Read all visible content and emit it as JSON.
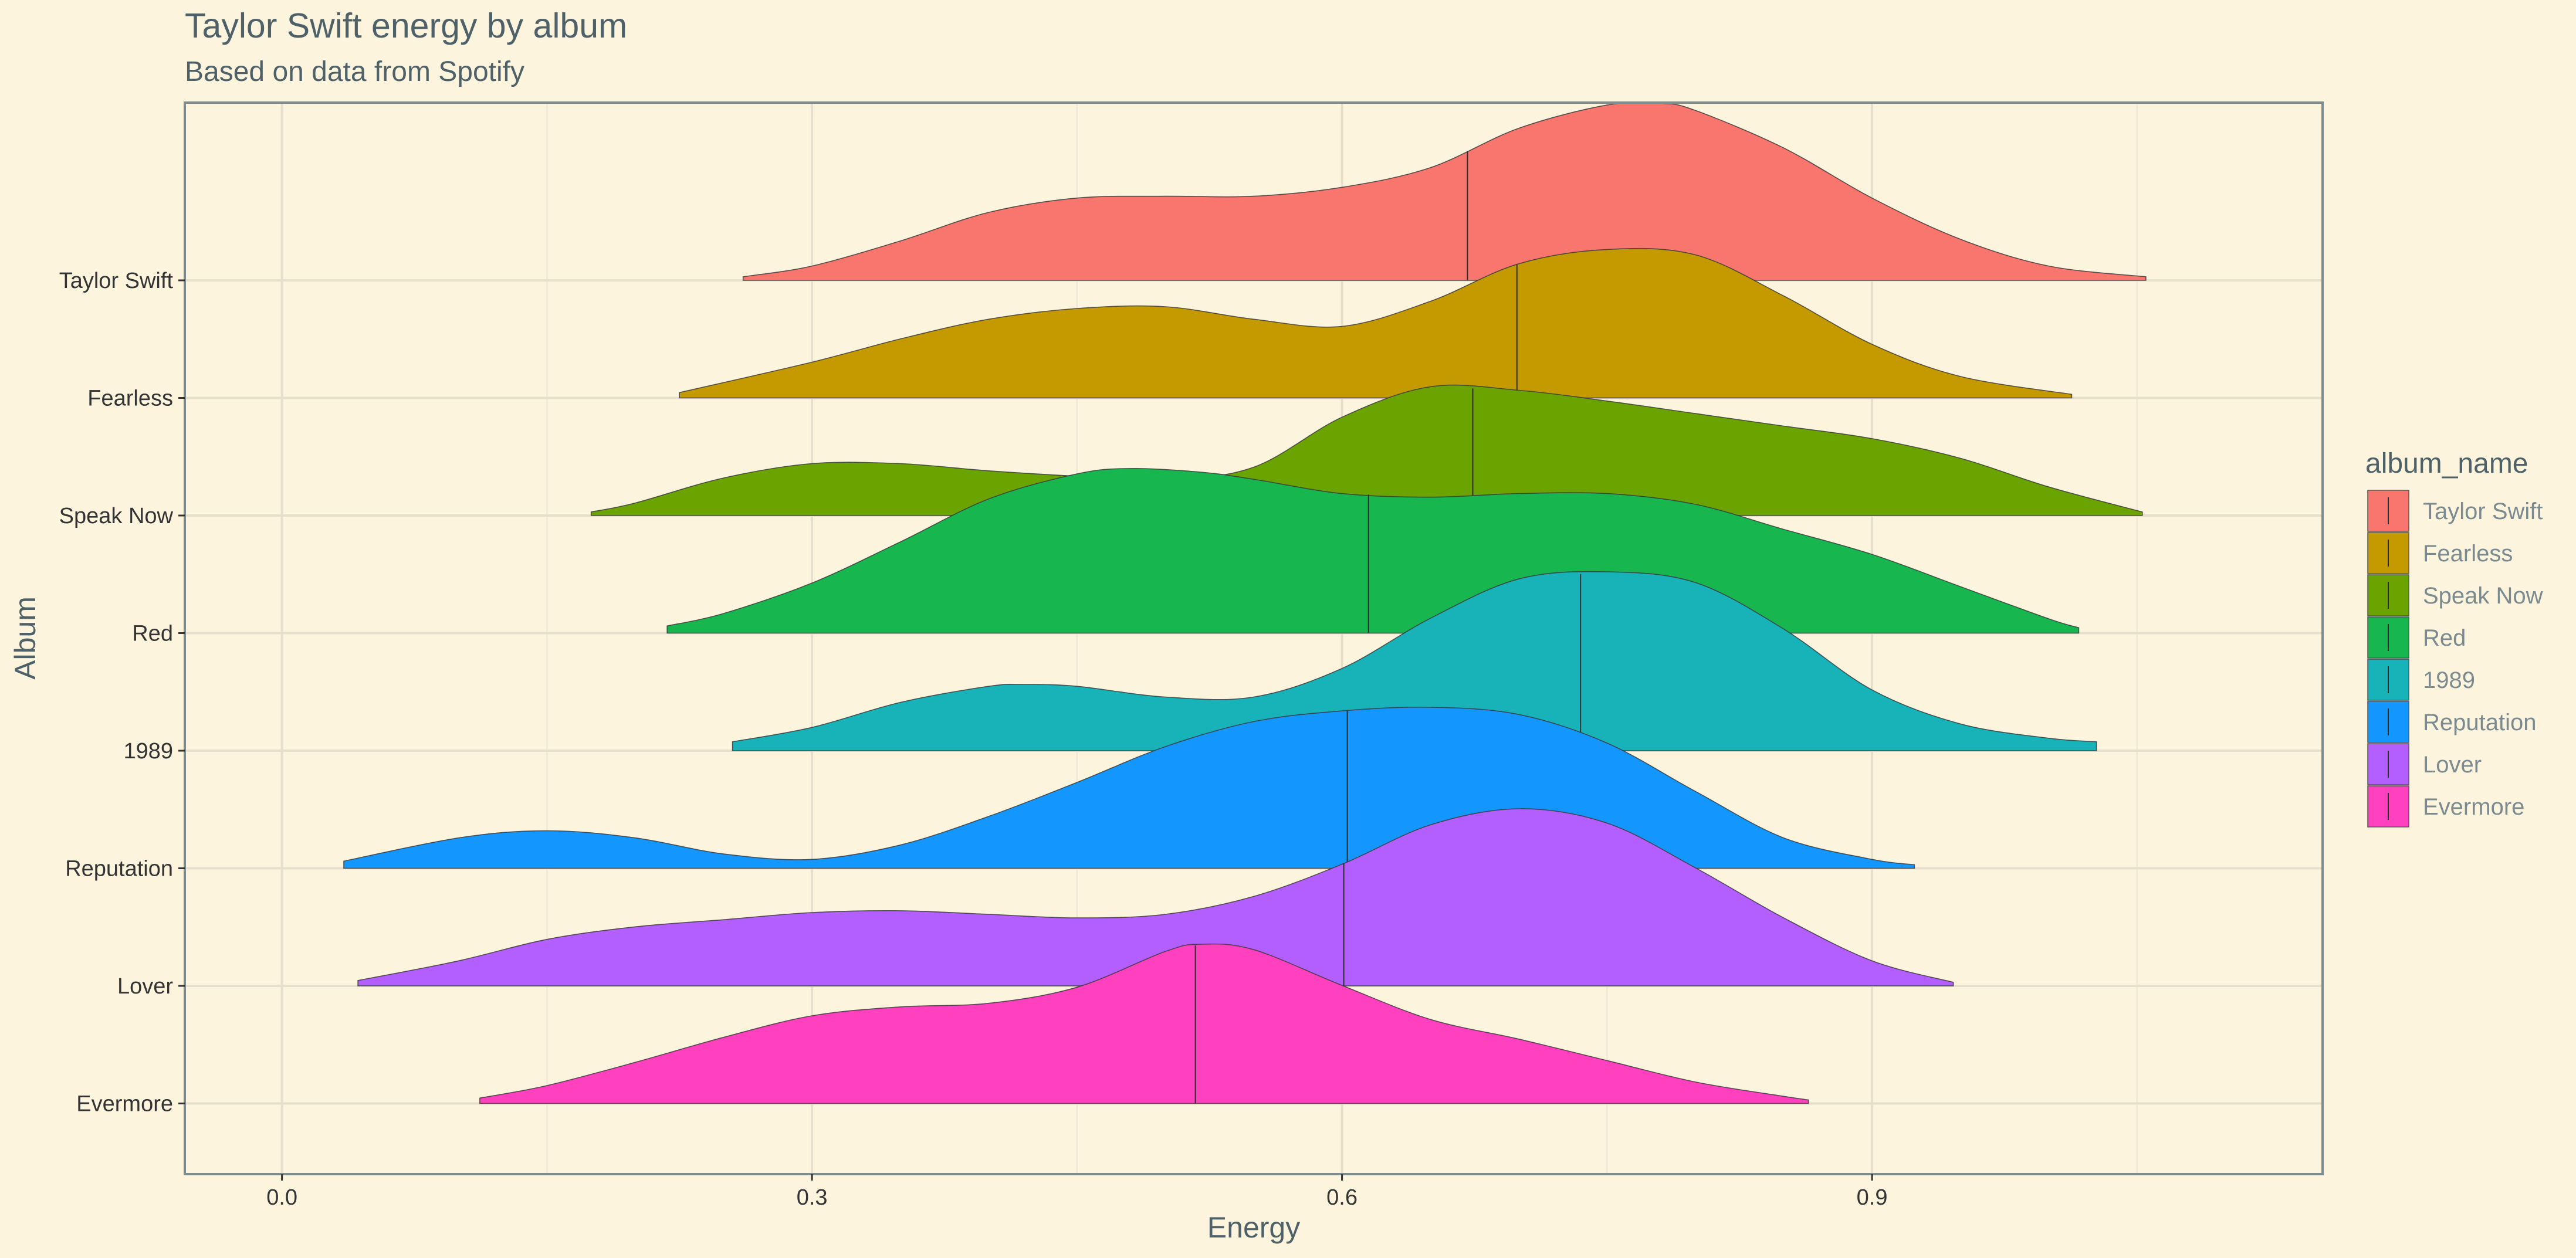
{
  "chart_data": {
    "type": "ridgeline",
    "title": "Taylor Swift energy by album",
    "subtitle": "Based on data from Spotify",
    "xlabel": "Energy",
    "ylabel": "Album",
    "xlim": [
      -0.055,
      1.155
    ],
    "x_ticks": [
      0.0,
      0.3,
      0.6,
      0.9
    ],
    "x_tick_labels": [
      "0.0",
      "0.3",
      "0.6",
      "0.9"
    ],
    "grid": true,
    "legend_title": "album_name",
    "legend_position": "right",
    "series": [
      {
        "name": "Taylor Swift",
        "color": "#F8766D",
        "median": 0.671,
        "x": [
          0.261,
          0.3,
          0.35,
          0.4,
          0.45,
          0.5,
          0.55,
          0.6,
          0.65,
          0.7,
          0.75,
          0.78,
          0.8,
          0.85,
          0.9,
          0.95,
          1.0,
          1.055
        ],
        "density": [
          0.02,
          0.08,
          0.22,
          0.38,
          0.46,
          0.47,
          0.47,
          0.52,
          0.63,
          0.85,
          0.98,
          0.99,
          0.95,
          0.74,
          0.46,
          0.23,
          0.08,
          0.02
        ]
      },
      {
        "name": "Fearless",
        "color": "#C49A00",
        "median": 0.699,
        "x": [
          0.225,
          0.3,
          0.35,
          0.4,
          0.45,
          0.5,
          0.55,
          0.6,
          0.65,
          0.7,
          0.75,
          0.8,
          0.85,
          0.9,
          0.95,
          1.013
        ],
        "density": [
          0.03,
          0.2,
          0.33,
          0.44,
          0.5,
          0.51,
          0.44,
          0.4,
          0.54,
          0.75,
          0.83,
          0.8,
          0.57,
          0.3,
          0.12,
          0.02
        ]
      },
      {
        "name": "Speak Now",
        "color": "#53B400",
        "median": 0.674,
        "x": [
          0.175,
          0.2,
          0.25,
          0.3,
          0.35,
          0.4,
          0.45,
          0.5,
          0.55,
          0.6,
          0.65,
          0.7,
          0.75,
          0.8,
          0.85,
          0.9,
          0.95,
          1.0,
          1.053
        ],
        "density": [
          0.02,
          0.07,
          0.21,
          0.29,
          0.29,
          0.25,
          0.22,
          0.2,
          0.27,
          0.55,
          0.72,
          0.7,
          0.64,
          0.57,
          0.5,
          0.43,
          0.32,
          0.16,
          0.02
        ]
      },
      {
        "name": "Red",
        "color": "#00C094",
        "median": 0.615,
        "x": [
          0.218,
          0.25,
          0.3,
          0.35,
          0.4,
          0.45,
          0.48,
          0.52,
          0.55,
          0.6,
          0.65,
          0.7,
          0.75,
          0.8,
          0.85,
          0.9,
          0.95,
          1.0,
          1.017
        ],
        "density": [
          0.04,
          0.11,
          0.28,
          0.51,
          0.75,
          0.89,
          0.92,
          0.9,
          0.86,
          0.78,
          0.76,
          0.78,
          0.78,
          0.72,
          0.58,
          0.44,
          0.26,
          0.08,
          0.03
        ]
      },
      {
        "name": "1989",
        "color": "#00B6EB",
        "median": 0.735,
        "x": [
          0.255,
          0.3,
          0.35,
          0.4,
          0.42,
          0.45,
          0.5,
          0.55,
          0.6,
          0.65,
          0.7,
          0.75,
          0.8,
          0.85,
          0.9,
          0.95,
          1.0,
          1.027
        ],
        "density": [
          0.05,
          0.13,
          0.27,
          0.36,
          0.37,
          0.36,
          0.3,
          0.3,
          0.46,
          0.74,
          0.96,
          1.0,
          0.94,
          0.68,
          0.34,
          0.15,
          0.07,
          0.05
        ]
      },
      {
        "name": "Reputation",
        "color": "#A58AFF",
        "median": 0.603,
        "x": [
          0.035,
          0.1,
          0.15,
          0.2,
          0.25,
          0.3,
          0.35,
          0.4,
          0.45,
          0.5,
          0.55,
          0.6,
          0.65,
          0.7,
          0.75,
          0.8,
          0.85,
          0.9,
          0.924
        ],
        "density": [
          0.04,
          0.17,
          0.21,
          0.17,
          0.08,
          0.05,
          0.13,
          0.29,
          0.48,
          0.68,
          0.82,
          0.88,
          0.9,
          0.86,
          0.7,
          0.43,
          0.17,
          0.05,
          0.02
        ]
      },
      {
        "name": "Lover",
        "color": "#FB61D7",
        "median": 0.601,
        "x": [
          0.043,
          0.1,
          0.15,
          0.2,
          0.25,
          0.3,
          0.35,
          0.4,
          0.45,
          0.5,
          0.55,
          0.6,
          0.65,
          0.7,
          0.75,
          0.8,
          0.85,
          0.9,
          0.946
        ],
        "density": [
          0.03,
          0.14,
          0.26,
          0.33,
          0.37,
          0.41,
          0.42,
          0.4,
          0.38,
          0.4,
          0.5,
          0.68,
          0.9,
          0.99,
          0.91,
          0.66,
          0.38,
          0.14,
          0.02
        ]
      },
      {
        "name": "Evermore",
        "color": "#FF3FC0",
        "median": 0.517,
        "x": [
          0.112,
          0.15,
          0.2,
          0.25,
          0.3,
          0.35,
          0.4,
          0.45,
          0.5,
          0.52,
          0.55,
          0.6,
          0.65,
          0.7,
          0.75,
          0.8,
          0.85,
          0.864
        ],
        "density": [
          0.03,
          0.1,
          0.23,
          0.37,
          0.49,
          0.54,
          0.56,
          0.65,
          0.85,
          0.89,
          0.86,
          0.66,
          0.47,
          0.36,
          0.24,
          0.12,
          0.04,
          0.02
        ]
      }
    ]
  },
  "legend_colors": [
    "#F8766D",
    "#C49A00",
    "#6BA300",
    "#17B64F",
    "#17B3B8",
    "#1496FF",
    "#B35EFF",
    "#FF41C0"
  ]
}
